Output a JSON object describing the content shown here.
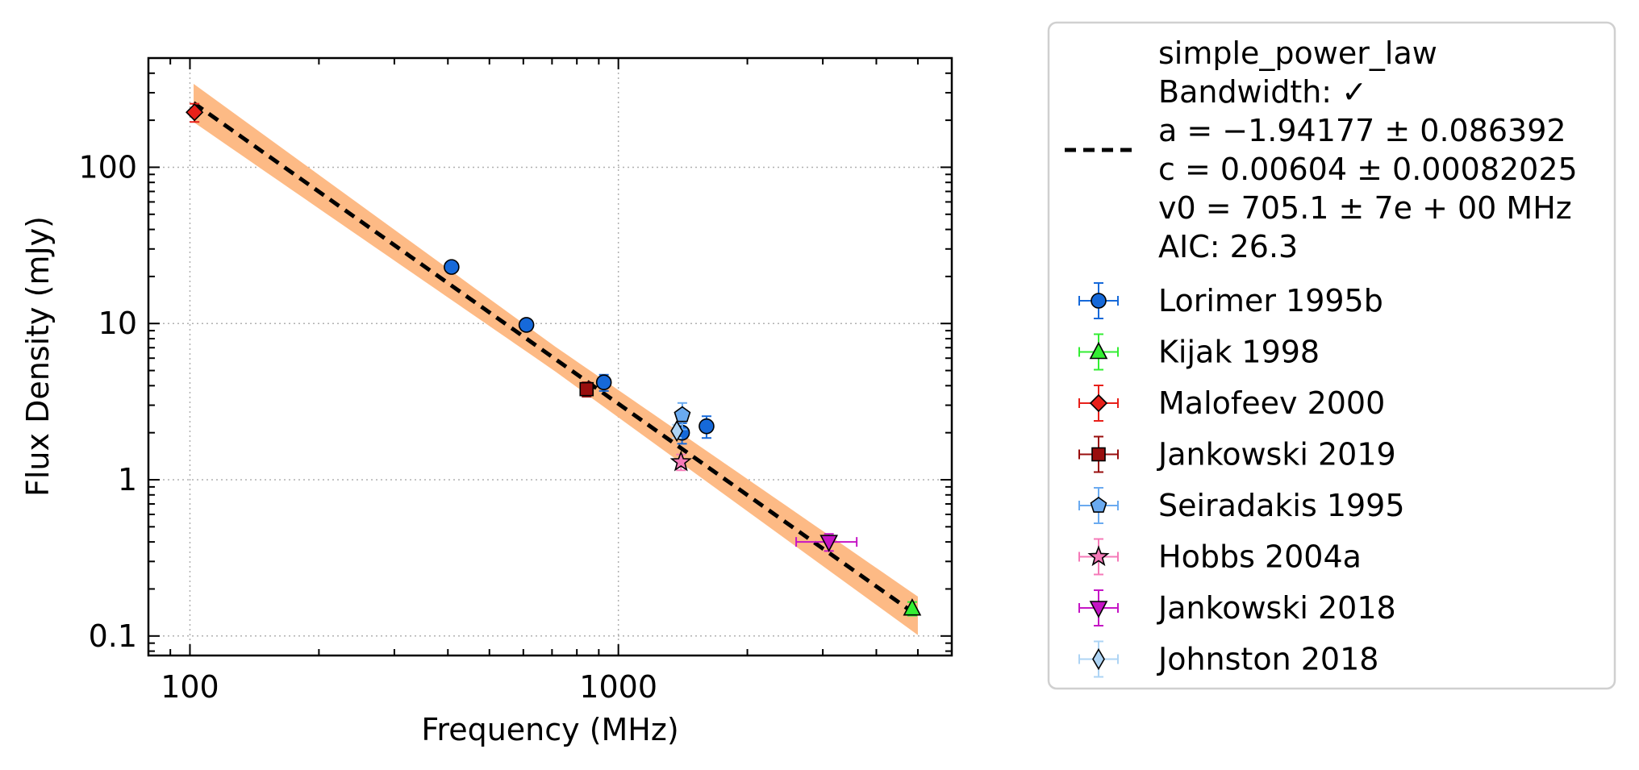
{
  "chart_data": {
    "type": "scatter",
    "xlabel": "Frequency (MHz)",
    "ylabel": "Flux Density (mJy)",
    "xscale": "log",
    "yscale": "log",
    "xlim": [
      80,
      6000
    ],
    "ylim": [
      0.075,
      500
    ],
    "x_ticks": [
      {
        "value": 100,
        "label": "100"
      },
      {
        "value": 1000,
        "label": "1000"
      }
    ],
    "y_ticks": [
      {
        "value": 0.1,
        "label": "0.1"
      },
      {
        "value": 1,
        "label": "1"
      },
      {
        "value": 10,
        "label": "10"
      },
      {
        "value": 100,
        "label": "100"
      }
    ],
    "grid": true,
    "legend_position": "outside-right",
    "fit": {
      "model_name": "simple_power_law",
      "lines": [
        "simple_power_law",
        "Bandwidth: ✓",
        "a = −1.94177 ± 0.086392",
        "c = 0.00604 ± 0.00082025",
        "v0 = 705.1 ± 7e + 00 MHz",
        "AIC: 26.3"
      ],
      "a": -1.94177,
      "c": 0.00604,
      "v0": 705.1,
      "x_range": [
        102,
        5000
      ],
      "band_fraction": 0.2,
      "line_color": "#000000",
      "band_color": "#fdba85"
    },
    "series": [
      {
        "name": "Lorimer 1995b",
        "marker": "circle",
        "color": "#1669d9",
        "points": [
          {
            "x": 408,
            "y": 23,
            "yerr": 1.5
          },
          {
            "x": 610,
            "y": 9.8,
            "yerr": 0.8
          },
          {
            "x": 925,
            "y": 4.2,
            "yerr": 0.5
          },
          {
            "x": 1408,
            "y": 2.0,
            "yerr": 0.3
          },
          {
            "x": 1606,
            "y": 2.2,
            "yerr": 0.35
          }
        ]
      },
      {
        "name": "Kijak 1998",
        "marker": "triangle-up",
        "color": "#33ee33",
        "points": [
          {
            "x": 4850,
            "y": 0.15,
            "yerr": 0.015
          }
        ]
      },
      {
        "name": "Malofeev 2000",
        "marker": "diamond",
        "color": "#e8201a",
        "points": [
          {
            "x": 102.5,
            "y": 225,
            "yerr": 30
          }
        ]
      },
      {
        "name": "Jankowski 2019",
        "marker": "square",
        "color": "#990e0e",
        "points": [
          {
            "x": 843,
            "y": 3.8,
            "yerr": 0.4
          }
        ]
      },
      {
        "name": "Seiradakis 1995",
        "marker": "pentagon",
        "color": "#6aaaf0",
        "points": [
          {
            "x": 1410,
            "y": 2.6,
            "yerr": 0.5
          }
        ]
      },
      {
        "name": "Hobbs 2004a",
        "marker": "star",
        "color": "#f57ab8",
        "points": [
          {
            "x": 1400,
            "y": 1.3,
            "yerr": 0.15
          }
        ]
      },
      {
        "name": "Jankowski 2018",
        "marker": "triangle-down",
        "color": "#c515c5",
        "points": [
          {
            "x": 3100,
            "y": 0.4,
            "yerr": 0.05,
            "xerr_low": 2600,
            "xerr_high": 3600
          }
        ]
      },
      {
        "name": "Johnston 2018",
        "marker": "thin-diamond",
        "color": "#aed4f4",
        "points": [
          {
            "x": 1369,
            "y": 2.05,
            "yerr": 0.2
          }
        ]
      }
    ]
  }
}
